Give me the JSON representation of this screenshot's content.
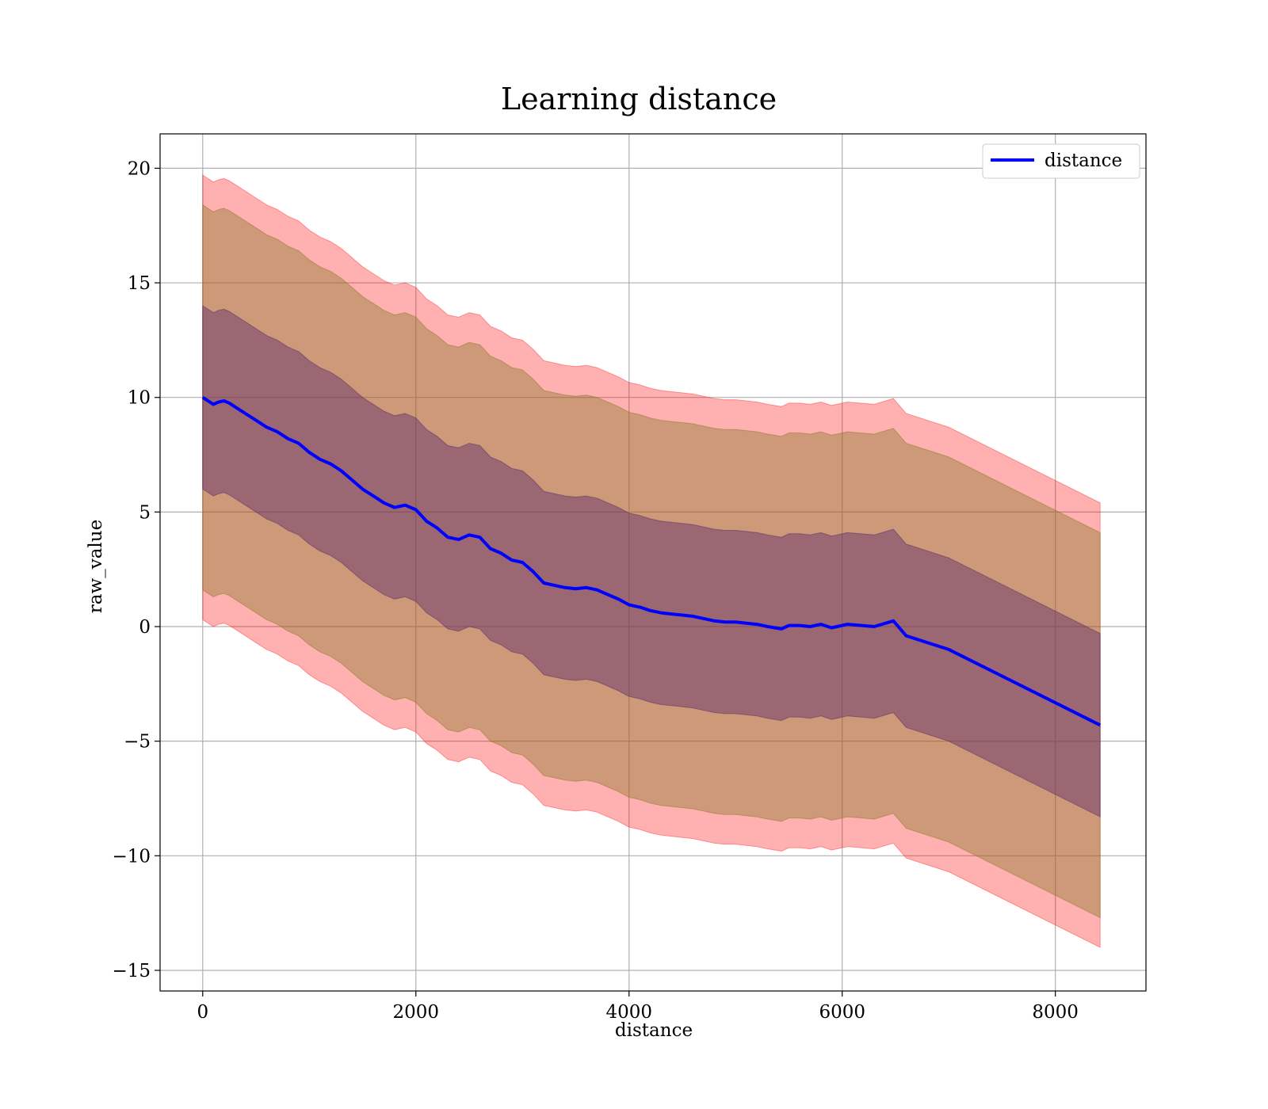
{
  "chart_data": {
    "type": "area",
    "title": "Learning distance",
    "xlabel": "distance",
    "ylabel": "raw_value",
    "xlim": [
      -400,
      8850
    ],
    "ylim": [
      -15.9,
      21.5
    ],
    "xticks": [
      0,
      2000,
      4000,
      6000,
      8000
    ],
    "xtick_labels": [
      "0",
      "2000",
      "4000",
      "6000",
      "8000"
    ],
    "yticks": [
      -15,
      -10,
      -5,
      0,
      5,
      10,
      15,
      20
    ],
    "ytick_labels": [
      "−15",
      "−10",
      "−5",
      "0",
      "5",
      "10",
      "15",
      "20"
    ],
    "grid": true,
    "legend": {
      "position": "top-right",
      "entries": [
        "distance"
      ]
    },
    "colors": {
      "line": "#0000ff",
      "band_outer": "#ff0000",
      "band_middle": "#8b7a2a",
      "band_inner": "#5a2a6a",
      "grid": "#b0b0b0"
    },
    "series": [
      {
        "name": "distance",
        "x": [
          0,
          100,
          150,
          200,
          250,
          300,
          400,
          500,
          600,
          700,
          800,
          900,
          1000,
          1100,
          1200,
          1300,
          1400,
          1500,
          1600,
          1700,
          1800,
          1900,
          2000,
          2100,
          2200,
          2300,
          2400,
          2500,
          2600,
          2700,
          2800,
          2900,
          3000,
          3100,
          3200,
          3300,
          3400,
          3500,
          3600,
          3700,
          3800,
          3900,
          4000,
          4100,
          4200,
          4300,
          4400,
          4500,
          4600,
          4700,
          4800,
          4900,
          5000,
          5100,
          5200,
          5300,
          5430,
          5500,
          5600,
          5700,
          5800,
          5900,
          6050,
          6300,
          6480,
          6600,
          7000,
          8420
        ],
        "y": [
          10.0,
          9.7,
          9.8,
          9.85,
          9.75,
          9.6,
          9.3,
          9.0,
          8.7,
          8.5,
          8.2,
          8.0,
          7.6,
          7.3,
          7.1,
          6.8,
          6.4,
          6.0,
          5.7,
          5.4,
          5.2,
          5.3,
          5.1,
          4.6,
          4.3,
          3.9,
          3.8,
          4.0,
          3.9,
          3.4,
          3.2,
          2.9,
          2.8,
          2.4,
          1.9,
          1.8,
          1.7,
          1.65,
          1.7,
          1.6,
          1.4,
          1.2,
          0.95,
          0.85,
          0.7,
          0.6,
          0.55,
          0.5,
          0.45,
          0.35,
          0.25,
          0.2,
          0.2,
          0.15,
          0.1,
          0.0,
          -0.1,
          0.05,
          0.05,
          0.0,
          0.1,
          -0.05,
          0.1,
          0.0,
          0.25,
          -0.4,
          -1.0,
          -4.3
        ]
      }
    ],
    "bands": [
      {
        "label": "outer",
        "offset": 9.7
      },
      {
        "label": "middle",
        "offset": 8.4
      },
      {
        "label": "inner",
        "offset": 4.0
      }
    ]
  }
}
